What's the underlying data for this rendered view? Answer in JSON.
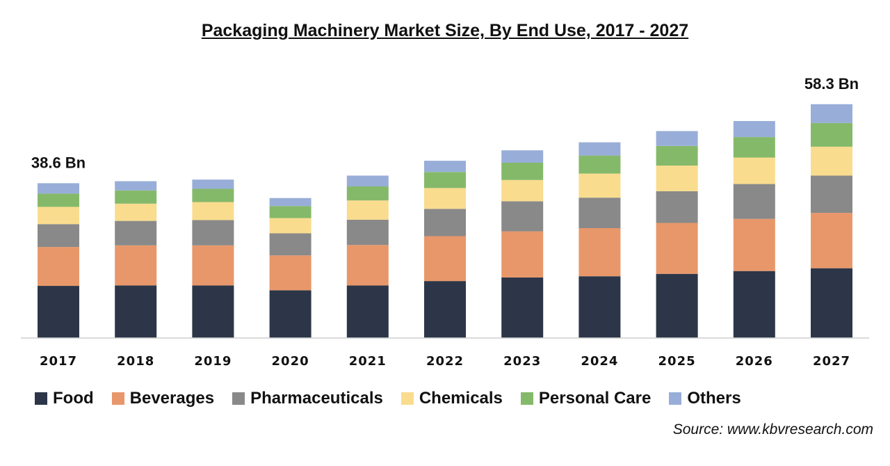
{
  "chart_data": {
    "type": "bar",
    "stacked": true,
    "title": "Packaging Machinery Market Size, By End Use, 2017 - 2027",
    "categories": [
      "2017",
      "2018",
      "2019",
      "2020",
      "2021",
      "2022",
      "2023",
      "2024",
      "2025",
      "2026",
      "2027"
    ],
    "series": [
      {
        "name": "Food",
        "color": "#2c3648",
        "values": [
          13.0,
          13.1,
          13.1,
          11.9,
          13.1,
          14.2,
          15.1,
          15.4,
          16.0,
          16.7,
          17.4
        ]
      },
      {
        "name": "Beverages",
        "color": "#e8976a",
        "values": [
          9.7,
          10.0,
          10.0,
          8.7,
          10.1,
          11.2,
          11.5,
          12.0,
          12.7,
          13.0,
          13.8
        ]
      },
      {
        "name": "Pharmaceuticals",
        "color": "#898989",
        "values": [
          5.7,
          6.1,
          6.3,
          5.5,
          6.3,
          6.8,
          7.5,
          7.6,
          7.9,
          8.7,
          9.3
        ]
      },
      {
        "name": "Chemicals",
        "color": "#f9dc8e",
        "values": [
          4.3,
          4.3,
          4.5,
          3.8,
          4.8,
          5.2,
          5.3,
          6.0,
          6.4,
          6.6,
          7.2
        ]
      },
      {
        "name": "Personal Care",
        "color": "#85b96a",
        "values": [
          3.3,
          3.3,
          3.3,
          3.0,
          3.5,
          4.0,
          4.3,
          4.5,
          4.9,
          5.1,
          5.9
        ]
      },
      {
        "name": "Others",
        "color": "#98aed8",
        "values": [
          2.6,
          2.3,
          2.3,
          2.0,
          2.7,
          2.8,
          3.1,
          3.3,
          3.7,
          4.0,
          4.7
        ]
      }
    ],
    "data_labels": [
      {
        "category": "2017",
        "text": "38.6 Bn"
      },
      {
        "category": "2027",
        "text": "58.3 Bn"
      }
    ],
    "ylim": [
      0,
      60
    ],
    "grid": false,
    "legend_position": "bottom"
  },
  "source_text": "Source: www.kbvresearch.com"
}
